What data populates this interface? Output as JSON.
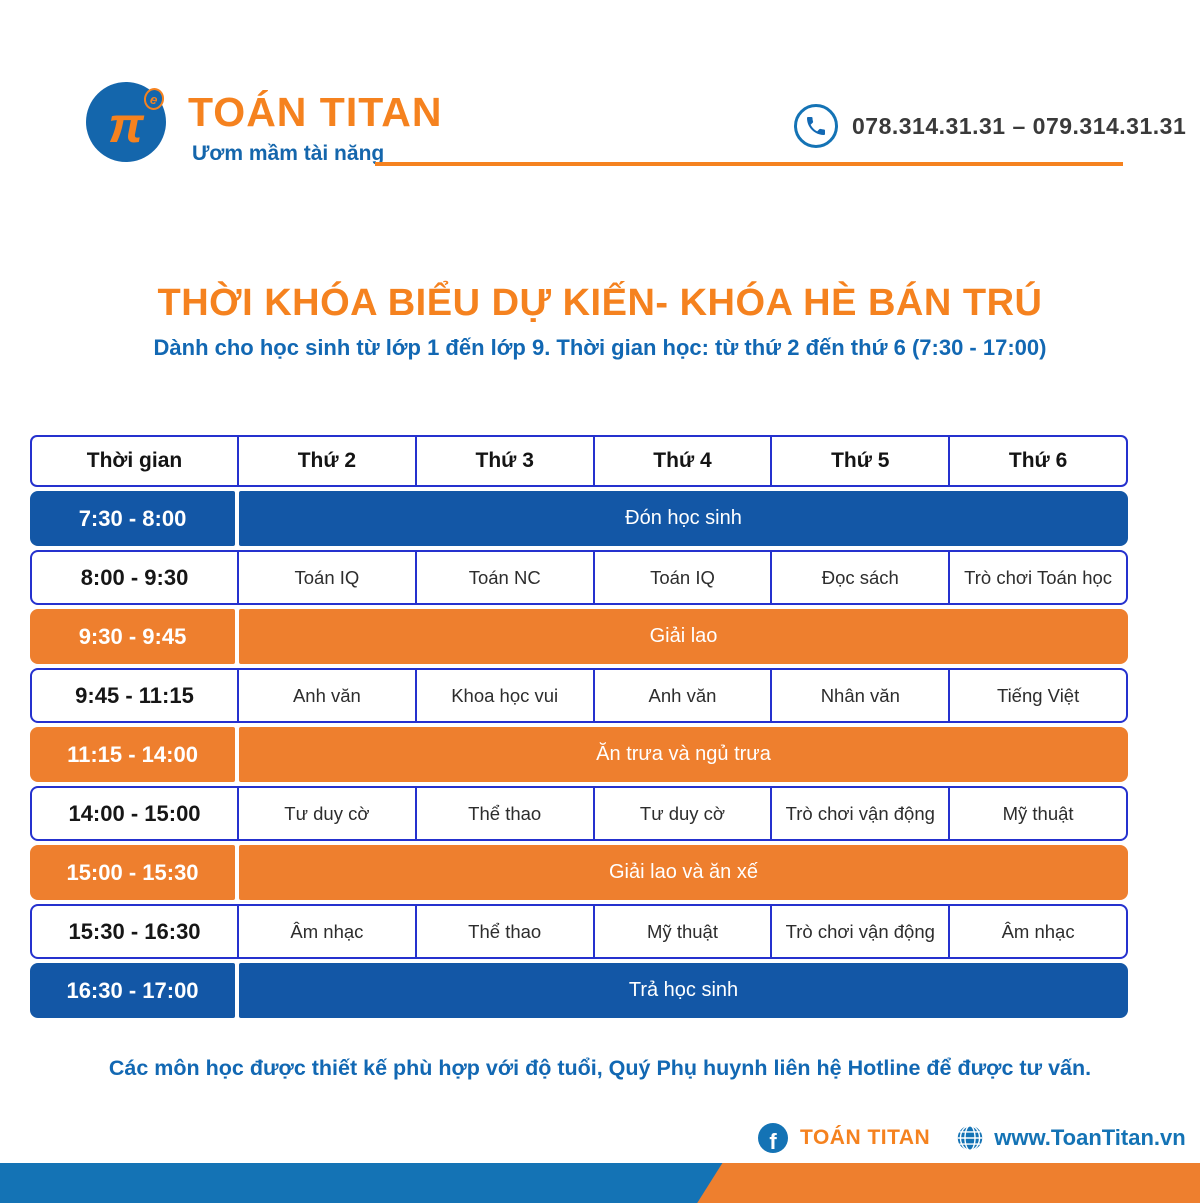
{
  "brand": {
    "pi_symbol": "π",
    "pi_exponent": "e",
    "name": "TOÁN TITAN",
    "slogan": "Ươm mầm tài năng",
    "phone": "078.314.31.31 – 079.314.31.31"
  },
  "title": "THỜI KHÓA BIỂU DỰ KIẾN- KHÓA HÈ BÁN TRÚ",
  "subtitle": "Dành cho học sinh từ lớp 1 đến lớp 9. Thời gian học: từ thứ 2 đến thứ 6 (7:30 - 17:00)",
  "table": {
    "columns": [
      "Thời gian",
      "Thứ 2",
      "Thứ 3",
      "Thứ 4",
      "Thứ 5",
      "Thứ 6"
    ],
    "rows": [
      {
        "time": "7:30 - 8:00",
        "span": "Đón học sinh",
        "color": "blue"
      },
      {
        "time": "8:00 - 9:30",
        "cells": [
          "Toán IQ",
          "Toán NC",
          "Toán IQ",
          "Đọc sách",
          "Trò chơi Toán học"
        ]
      },
      {
        "time": "9:30 - 9:45",
        "span": "Giải lao",
        "color": "orange"
      },
      {
        "time": "9:45 - 11:15",
        "cells": [
          "Anh văn",
          "Khoa học vui",
          "Anh văn",
          "Nhân văn",
          "Tiếng Việt"
        ]
      },
      {
        "time": "11:15 - 14:00",
        "span": "Ăn trưa và ngủ trưa",
        "color": "orange"
      },
      {
        "time": "14:00 - 15:00",
        "cells": [
          "Tư duy cờ",
          "Thể thao",
          "Tư duy cờ",
          "Trò chơi vận động",
          "Mỹ thuật"
        ]
      },
      {
        "time": "15:00 - 15:30",
        "span": "Giải lao và ăn xế",
        "color": "orange"
      },
      {
        "time": "15:30 - 16:30",
        "cells": [
          "Âm nhạc",
          "Thể thao",
          "Mỹ thuật",
          "Trò chơi vận động",
          "Âm nhạc"
        ]
      },
      {
        "time": "16:30 - 17:00",
        "span": "Trả học sinh",
        "color": "blue"
      }
    ]
  },
  "note": "Các môn học được thiết kế phù hợp với độ tuổi, Quý Phụ huynh liên hệ Hotline để được tư vấn.",
  "footer": {
    "facebook_label": "TOÁN TITAN",
    "website": "www.ToanTitan.vn",
    "facebook_icon_glyph": "f"
  },
  "icons": {
    "phone": "phone-icon",
    "facebook": "facebook-icon",
    "globe": "globe-icon",
    "logo": "pi-logo-icon"
  },
  "colors": {
    "orange_title": "#F5821F",
    "row_orange": "#EE7F2E",
    "row_blue": "#1357A6",
    "border_blue": "#2531CE",
    "text_blue": "#1268B3",
    "logo_blue": "#1466AC",
    "bar_blue": "#1473B5"
  }
}
